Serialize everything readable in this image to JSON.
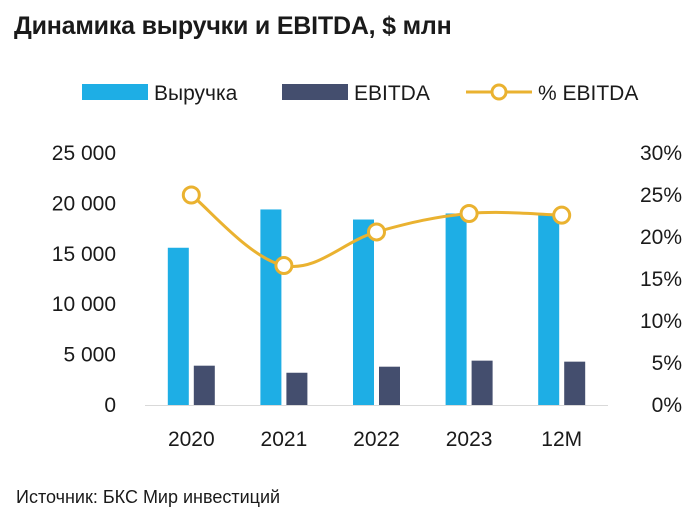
{
  "title": "Динамика выручки и EBITDA, $ млн",
  "source": "Источник: БКС Мир инвестиций",
  "colors": {
    "revenue": "#1eaee5",
    "ebitda": "#444e6e",
    "margin": "#eab230"
  },
  "chart_data": {
    "type": "bar",
    "title": "Динамика выручки и EBITDA, $ млн",
    "categories": [
      "2020",
      "2021",
      "2022",
      "2023",
      "12M"
    ],
    "series": [
      {
        "name": "Выручка",
        "type": "bar",
        "axis": "left",
        "values": [
          15600,
          19400,
          18400,
          19000,
          19000
        ]
      },
      {
        "name": "EBITDA",
        "type": "bar",
        "axis": "left",
        "values": [
          3900,
          3200,
          3800,
          4400,
          4300
        ]
      },
      {
        "name": "% EBITDA",
        "type": "line",
        "axis": "right",
        "values": [
          25.0,
          16.6,
          20.6,
          22.8,
          22.6
        ]
      }
    ],
    "y_left": {
      "min": 0,
      "max": 25000,
      "ticks": [
        "0",
        "5 000",
        "10 000",
        "15 000",
        "20 000",
        "25 000"
      ]
    },
    "y_right": {
      "min": 0,
      "max": 30,
      "ticks": [
        "0%",
        "5%",
        "10%",
        "15%",
        "20%",
        "25%",
        "30%"
      ]
    },
    "legend_position": "top",
    "grid": false
  }
}
